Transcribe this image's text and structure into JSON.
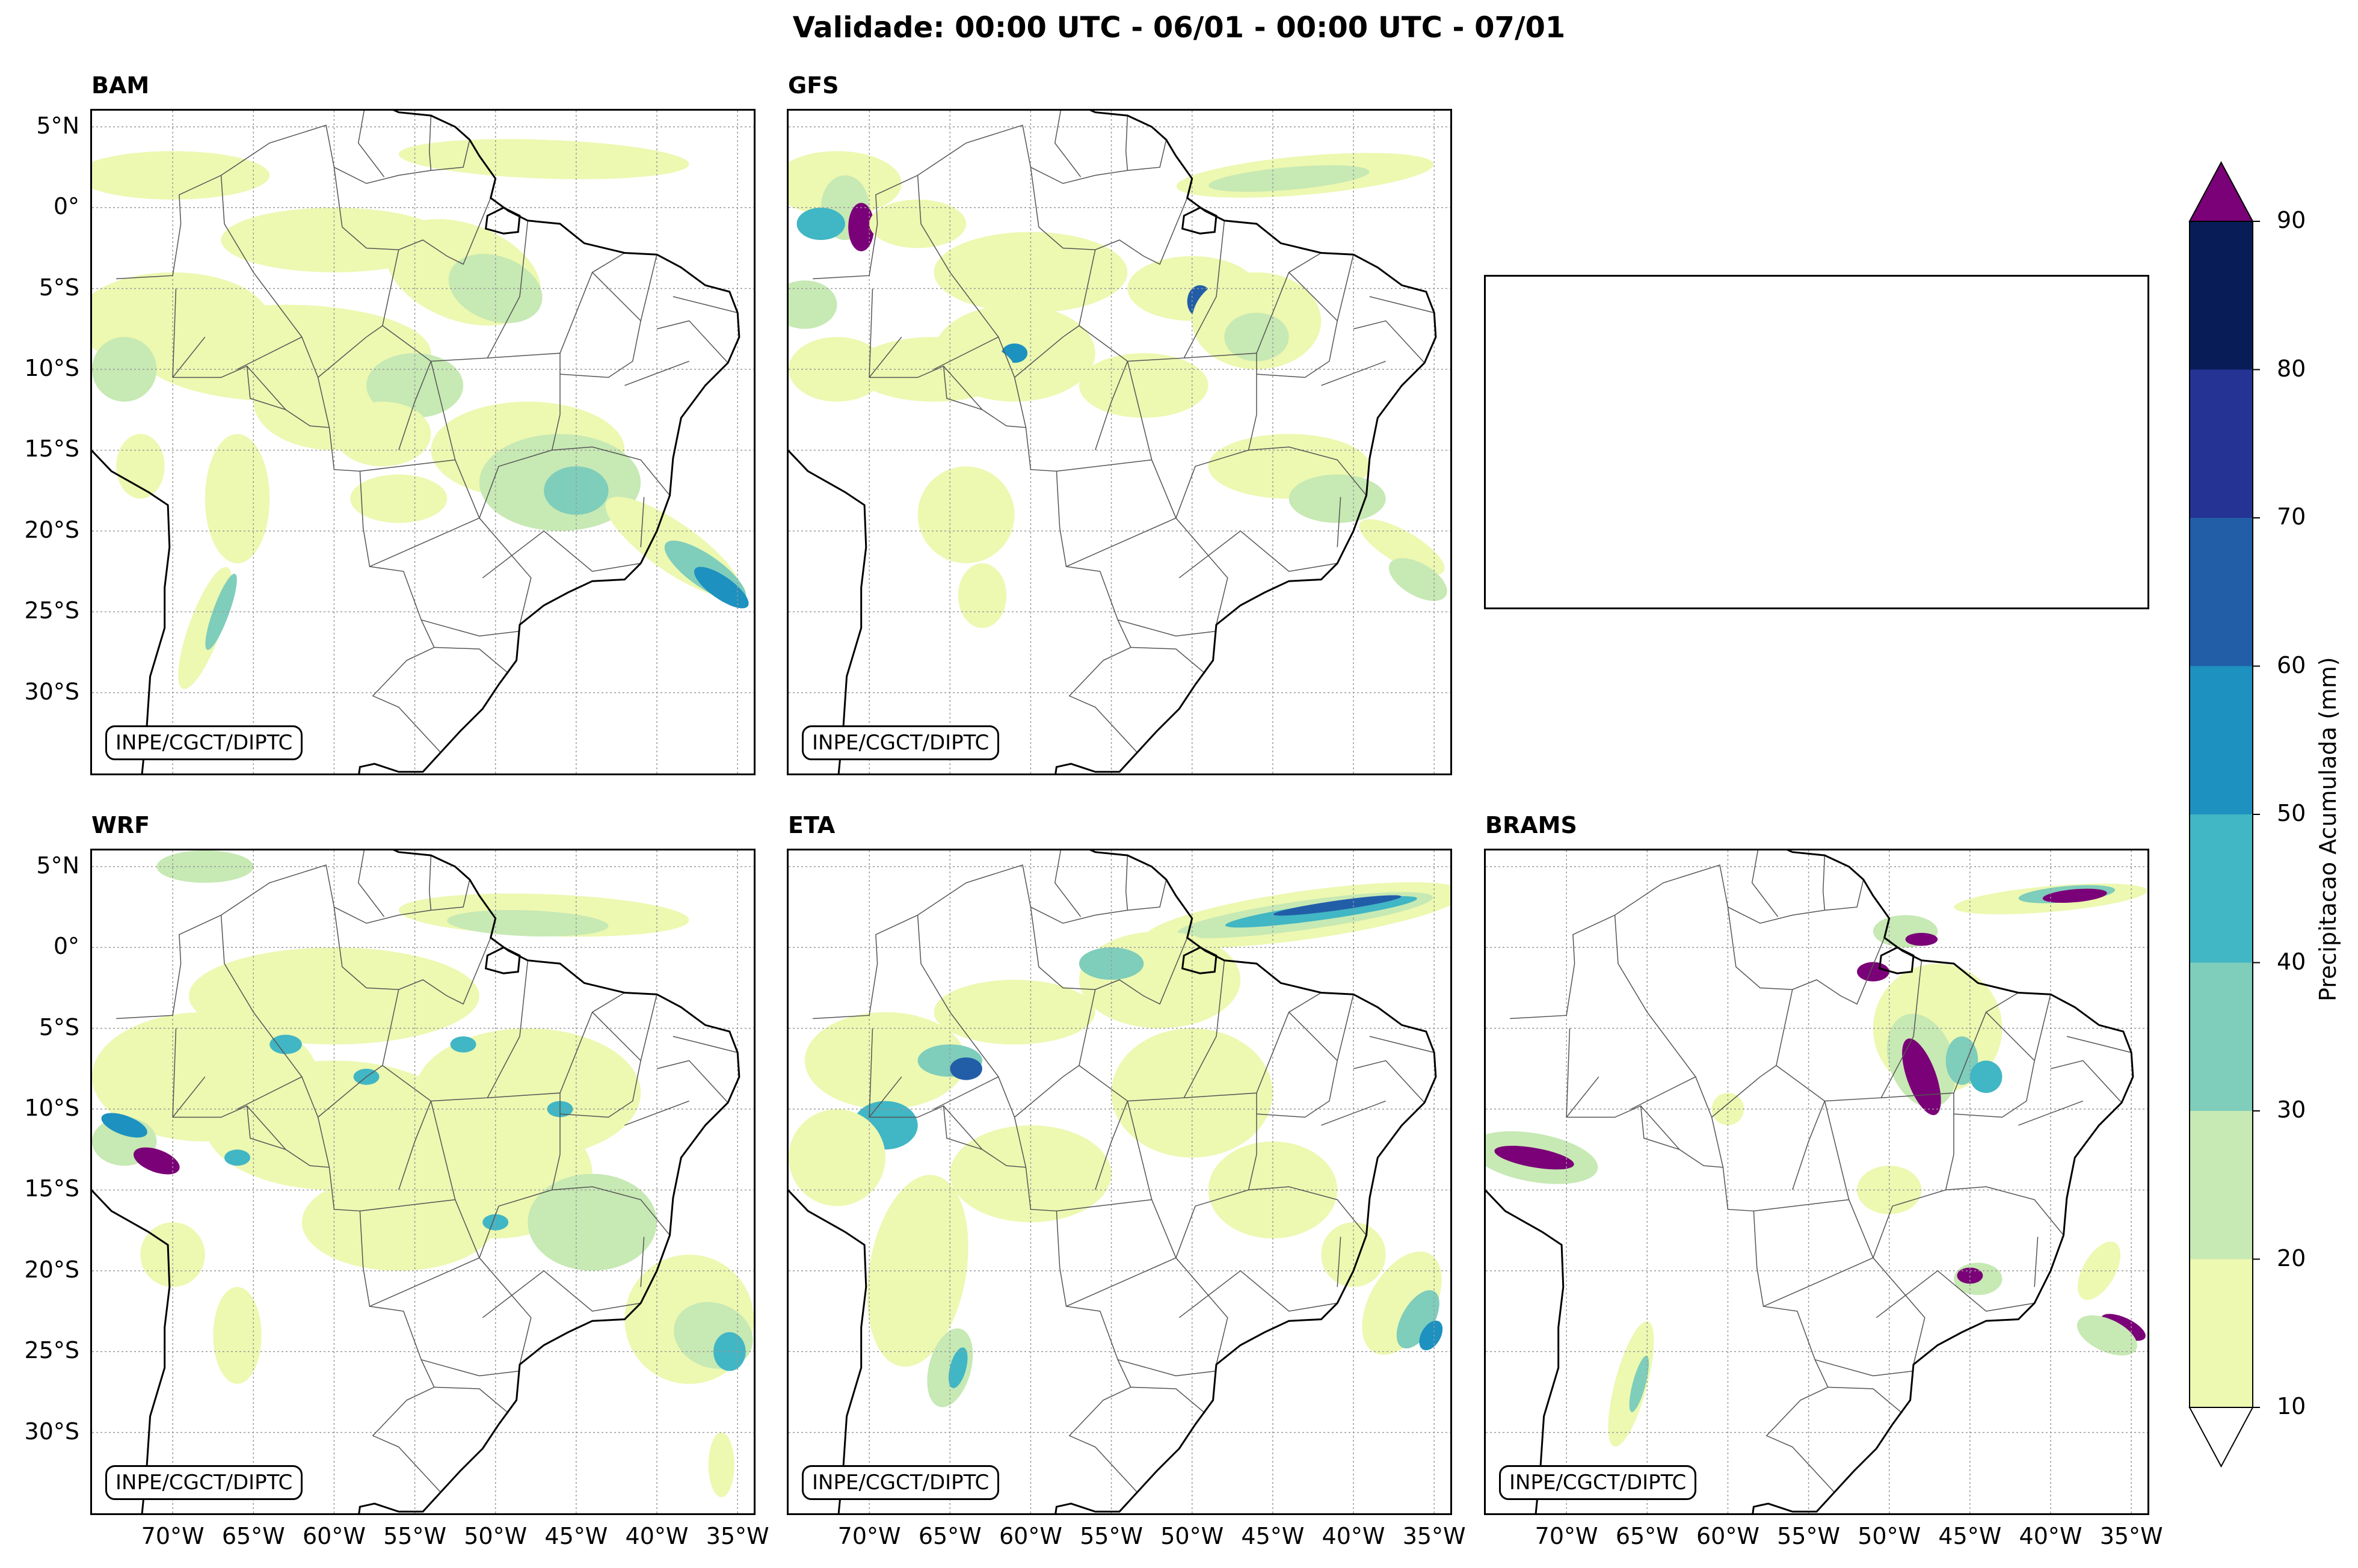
{
  "title": "Validade: 00:00 UTC - 06/01 - 00:00 UTC - 07/01",
  "credit": "INPE/CGCT/DIPTC",
  "lat_labels": [
    "5°N",
    "0°",
    "5°S",
    "10°S",
    "15°S",
    "20°S",
    "25°S",
    "30°S"
  ],
  "lon_labels": [
    "70°W",
    "65°W",
    "60°W",
    "55°W",
    "50°W",
    "45°W",
    "40°W",
    "35°W"
  ],
  "panels": [
    {
      "id": "bam",
      "title": "BAM",
      "empty": false
    },
    {
      "id": "gfs",
      "title": "GFS",
      "empty": false
    },
    {
      "id": "empty",
      "title": "",
      "empty": true
    },
    {
      "id": "wrf",
      "title": "WRF",
      "empty": false
    },
    {
      "id": "eta",
      "title": "ETA",
      "empty": false
    },
    {
      "id": "brams",
      "title": "BRAMS",
      "empty": false
    }
  ],
  "colorbar": {
    "label": "Precipitacao Acumulada (mm)",
    "ticks": [
      "10",
      "20",
      "30",
      "40",
      "50",
      "60",
      "70",
      "80",
      "90"
    ],
    "colors": [
      "#edf8b1",
      "#c7e9b4",
      "#7fcdbb",
      "#41b6c4",
      "#1d91c0",
      "#225ea8",
      "#253494",
      "#081d58"
    ],
    "over_color": "#7a0177",
    "under_color": "#ffffff"
  }
}
